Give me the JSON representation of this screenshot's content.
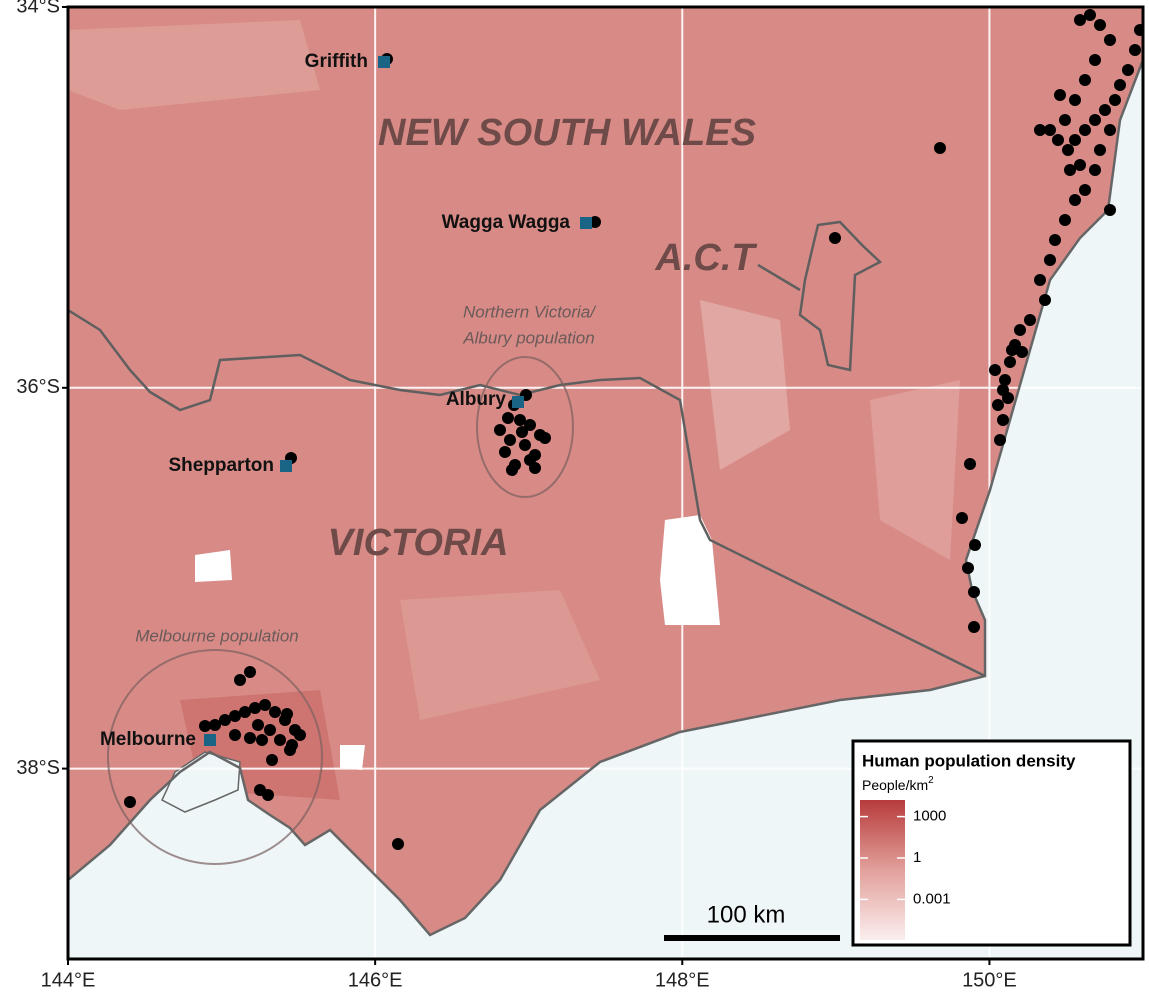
{
  "map": {
    "xlim": [
      144,
      151
    ],
    "ylim": [
      -39,
      -34
    ],
    "xticks": [
      {
        "value": 144,
        "label": "144°E"
      },
      {
        "value": 146,
        "label": "146°E"
      },
      {
        "value": 148,
        "label": "148°E"
      },
      {
        "value": 150,
        "label": "150°E"
      }
    ],
    "yticks": [
      {
        "value": -34,
        "label": "34°S"
      },
      {
        "value": -36,
        "label": "36°S"
      },
      {
        "value": -38,
        "label": "38°S"
      }
    ],
    "regions": [
      "NEW SOUTH WALES",
      "A.C.T",
      "VICTORIA"
    ],
    "cities": [
      "Griffith",
      "Wagga Wagga",
      "Albury",
      "Shepparton",
      "Melbourne"
    ],
    "annotations": {
      "albury": [
        "Northern Victoria/",
        "Albury population"
      ],
      "melbourne": "Melbourne population"
    },
    "legend": {
      "title": "Human population density",
      "unit": "People/km",
      "unit_superscript": "2",
      "ticks": [
        1000,
        1,
        0.001
      ]
    },
    "scale_bar": "100 km"
  }
}
